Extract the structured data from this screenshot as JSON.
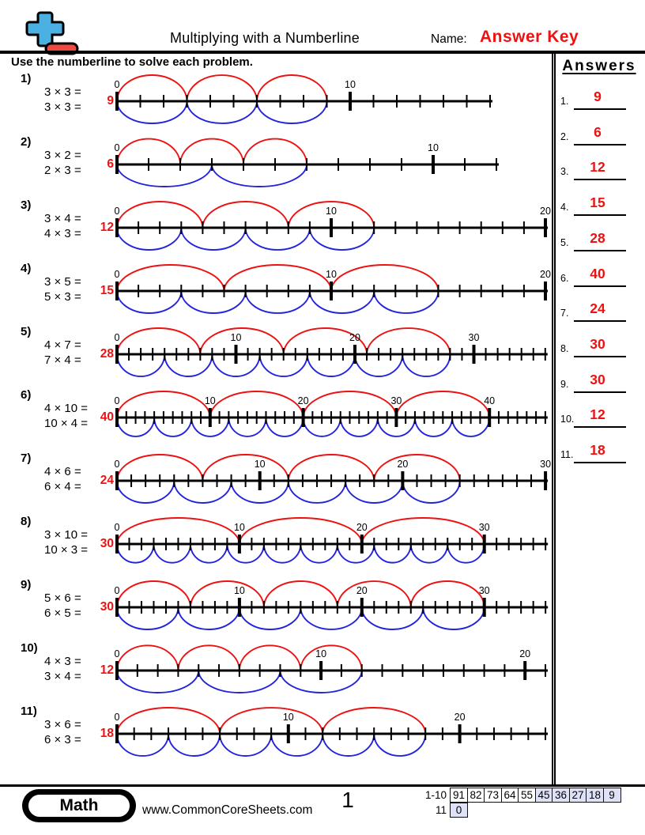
{
  "header": {
    "title": "Multiplying with a Numberline",
    "name_label": "Name:",
    "name_value": "Answer Key"
  },
  "instructions": {
    "text": "Use the numberline to solve each problem."
  },
  "answers_panel": {
    "title": "Answers",
    "items": [
      {
        "num": "1.",
        "value": "9"
      },
      {
        "num": "2.",
        "value": "6"
      },
      {
        "num": "3.",
        "value": "12"
      },
      {
        "num": "4.",
        "value": "15"
      },
      {
        "num": "5.",
        "value": "28"
      },
      {
        "num": "6.",
        "value": "40"
      },
      {
        "num": "7.",
        "value": "24"
      },
      {
        "num": "8.",
        "value": "30"
      },
      {
        "num": "9.",
        "value": "30"
      },
      {
        "num": "10.",
        "value": "12"
      },
      {
        "num": "11.",
        "value": "18"
      }
    ]
  },
  "problems": [
    {
      "num": "1)",
      "eq_top": "3 × 3 =",
      "eq_bottom": "3 × 3 =",
      "answer": "9",
      "line": {
        "max": 16,
        "labels": [
          0,
          10
        ],
        "red_jumps": {
          "size": 3,
          "count": 3
        },
        "blue_jumps": {
          "size": 3,
          "count": 3
        }
      }
    },
    {
      "num": "2)",
      "eq_top": "3 × 2 =",
      "eq_bottom": "2 × 3 =",
      "answer": "6",
      "line": {
        "max": 12,
        "labels": [
          0,
          10
        ],
        "red_jumps": {
          "size": 2,
          "count": 3
        },
        "blue_jumps": {
          "size": 3,
          "count": 2
        }
      }
    },
    {
      "num": "3)",
      "eq_top": "3 × 4 =",
      "eq_bottom": "4 × 3 =",
      "answer": "12",
      "line": {
        "max": 20,
        "labels": [
          0,
          10,
          20
        ],
        "red_jumps": {
          "size": 4,
          "count": 3
        },
        "blue_jumps": {
          "size": 3,
          "count": 4
        }
      }
    },
    {
      "num": "4)",
      "eq_top": "3 × 5 =",
      "eq_bottom": "5 × 3 =",
      "answer": "15",
      "line": {
        "max": 20,
        "labels": [
          0,
          10,
          20
        ],
        "red_jumps": {
          "size": 5,
          "count": 3
        },
        "blue_jumps": {
          "size": 3,
          "count": 5
        }
      }
    },
    {
      "num": "5)",
      "eq_top": "4 × 7 =",
      "eq_bottom": "7 × 4 =",
      "answer": "28",
      "line": {
        "max": 36,
        "labels": [
          0,
          10,
          20,
          30
        ],
        "red_jumps": {
          "size": 7,
          "count": 4
        },
        "blue_jumps": {
          "size": 4,
          "count": 7
        }
      }
    },
    {
      "num": "6)",
      "eq_top": "4 × 10 =",
      "eq_bottom": "10 × 4 =",
      "answer": "40",
      "line": {
        "max": 46,
        "labels": [
          0,
          10,
          20,
          30,
          40
        ],
        "red_jumps": {
          "size": 10,
          "count": 4
        },
        "blue_jumps": {
          "size": 4,
          "count": 10
        }
      }
    },
    {
      "num": "7)",
      "eq_top": "4 × 6 =",
      "eq_bottom": "6 × 4 =",
      "answer": "24",
      "line": {
        "max": 30,
        "labels": [
          0,
          10,
          20,
          30
        ],
        "red_jumps": {
          "size": 6,
          "count": 4
        },
        "blue_jumps": {
          "size": 4,
          "count": 6
        }
      }
    },
    {
      "num": "8)",
      "eq_top": "3 × 10 =",
      "eq_bottom": "10 × 3 =",
      "answer": "30",
      "line": {
        "max": 35,
        "labels": [
          0,
          10,
          20,
          30
        ],
        "red_jumps": {
          "size": 10,
          "count": 3
        },
        "blue_jumps": {
          "size": 3,
          "count": 10
        }
      }
    },
    {
      "num": "9)",
      "eq_top": "5 × 6 =",
      "eq_bottom": "6 × 5 =",
      "answer": "30",
      "line": {
        "max": 35,
        "labels": [
          0,
          10,
          20,
          30
        ],
        "red_jumps": {
          "size": 6,
          "count": 5
        },
        "blue_jumps": {
          "size": 5,
          "count": 6
        }
      }
    },
    {
      "num": "10)",
      "eq_top": "4 × 3 =",
      "eq_bottom": "3 × 4 =",
      "answer": "12",
      "line": {
        "max": 21,
        "labels": [
          0,
          10,
          20
        ],
        "red_jumps": {
          "size": 3,
          "count": 4
        },
        "blue_jumps": {
          "size": 4,
          "count": 3
        }
      }
    },
    {
      "num": "11)",
      "eq_top": "3 × 6 =",
      "eq_bottom": "6 × 3 =",
      "answer": "18",
      "line": {
        "max": 25,
        "labels": [
          0,
          10,
          20
        ],
        "red_jumps": {
          "size": 6,
          "count": 3
        },
        "blue_jumps": {
          "size": 3,
          "count": 6
        }
      }
    }
  ],
  "footer": {
    "subject_label": "Math",
    "website": "www.CommonCoreSheets.com",
    "page_number": "1",
    "score_table": {
      "row1_label": "1-10",
      "row1_cells": [
        {
          "value": "91",
          "shaded": false
        },
        {
          "value": "82",
          "shaded": false
        },
        {
          "value": "73",
          "shaded": false
        },
        {
          "value": "64",
          "shaded": false
        },
        {
          "value": "55",
          "shaded": false
        },
        {
          "value": "45",
          "shaded": true
        },
        {
          "value": "36",
          "shaded": true
        },
        {
          "value": "27",
          "shaded": true
        },
        {
          "value": "18",
          "shaded": true
        },
        {
          "value": "9",
          "shaded": true
        }
      ],
      "row2_label": "11",
      "row2_cells": [
        {
          "value": "0",
          "shaded": true
        }
      ]
    }
  },
  "colors": {
    "accent_red": "#ee1111",
    "arc_blue": "#2323dd",
    "line_black": "#000000",
    "logo_blue": "#4ab1e2",
    "logo_red": "#ef4a42",
    "score_shade": "#dfe2f6"
  }
}
